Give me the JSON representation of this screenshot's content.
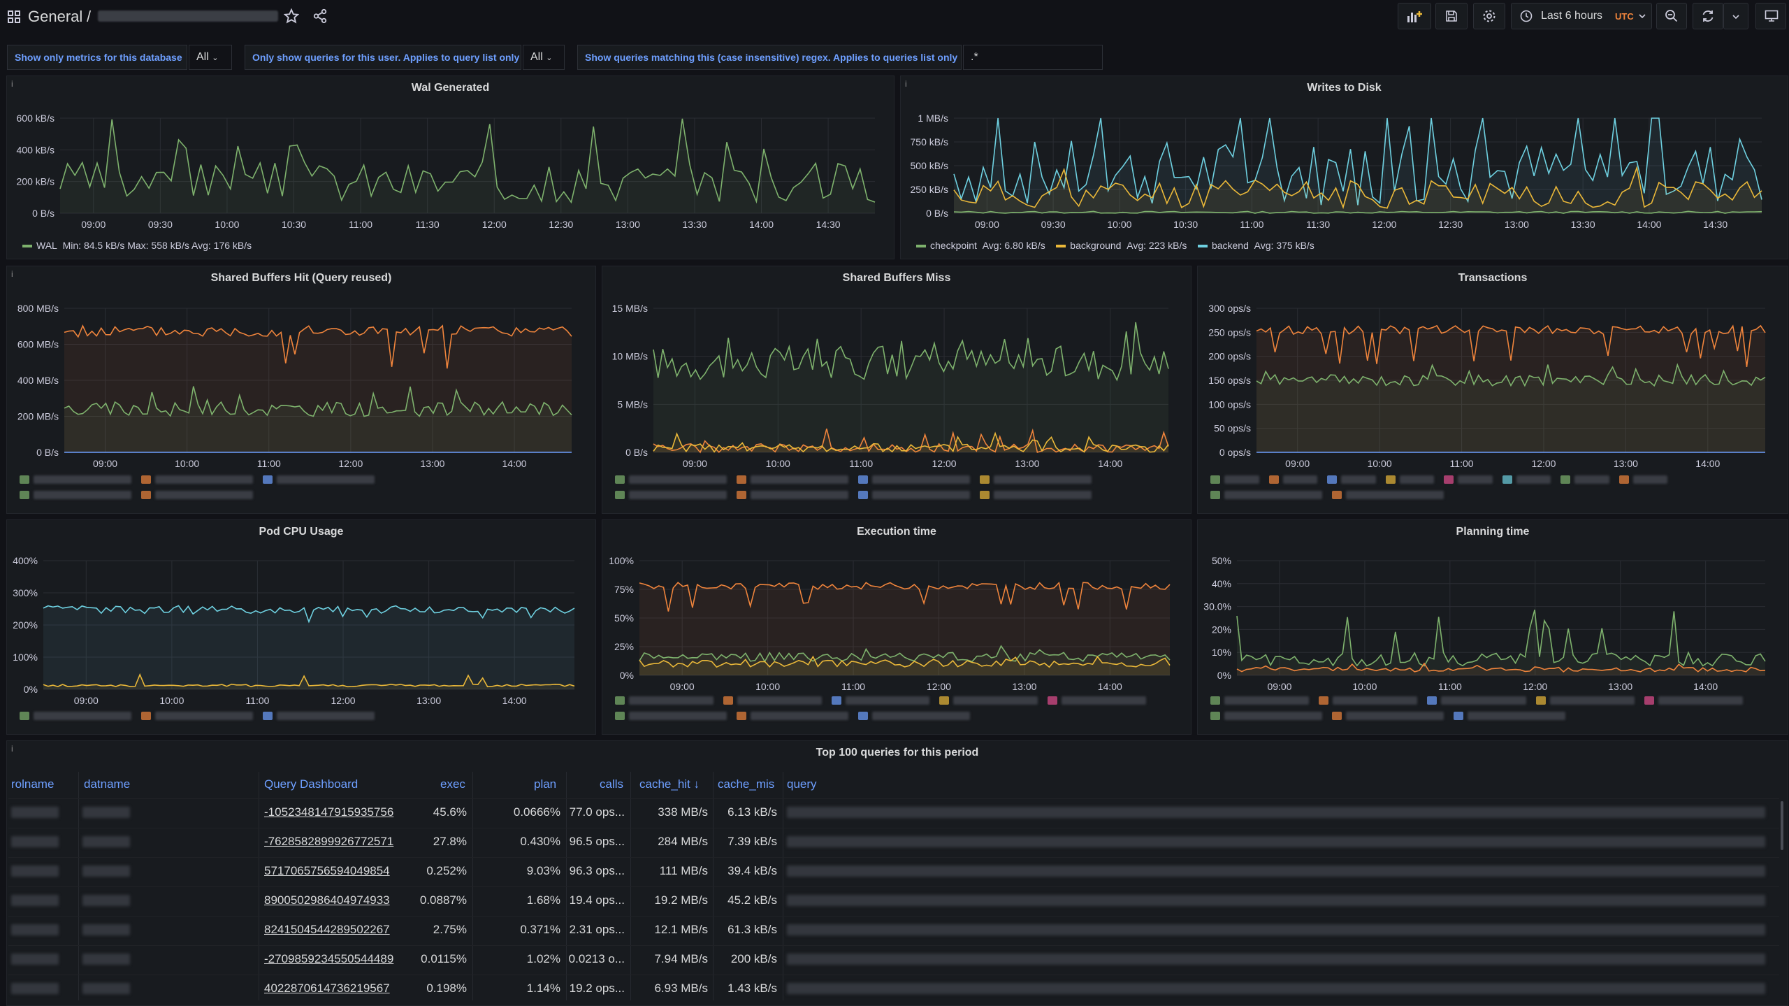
{
  "header": {
    "folder": "General",
    "separator": "/",
    "time_range": "Last 6 hours",
    "timezone": "UTC",
    "icons": [
      "apps-icon",
      "star-icon",
      "share-icon",
      "add-panel-icon",
      "save-icon",
      "settings-icon",
      "clock-icon",
      "zoom-out-icon",
      "refresh-icon",
      "chevron-down-icon",
      "tv-icon"
    ]
  },
  "variables": {
    "db_label": "Show only metrics for this database",
    "db_value": "All",
    "user_label": "Only show queries for this user. Applies to query list only",
    "user_value": "All",
    "regex_label": "Show queries matching this (case insensitive) regex. Applies to queries list only",
    "regex_value": ".*"
  },
  "panels": {
    "wal": {
      "title": "Wal Generated",
      "info": "i",
      "yticks": [
        "600 kB/s",
        "400 kB/s",
        "200 kB/s",
        "0 B/s"
      ],
      "xticks": [
        "09:00",
        "09:30",
        "10:00",
        "10:30",
        "11:00",
        "11:30",
        "12:00",
        "12:30",
        "13:00",
        "13:30",
        "14:00",
        "14:30"
      ],
      "legend": [
        {
          "name": "WAL",
          "stats": "Min: 84.5 kB/s  Max: 558 kB/s  Avg: 176 kB/s",
          "color": "#7eb26d"
        }
      ]
    },
    "writes": {
      "title": "Writes to Disk",
      "info": "i",
      "yticks": [
        "1 MB/s",
        "750 kB/s",
        "500 kB/s",
        "250 kB/s",
        "0 B/s"
      ],
      "xticks": [
        "09:00",
        "09:30",
        "10:00",
        "10:30",
        "11:00",
        "11:30",
        "12:00",
        "12:30",
        "13:00",
        "13:30",
        "14:00",
        "14:30"
      ],
      "legend": [
        {
          "name": "checkpoint",
          "stats": "Avg: 6.80 kB/s",
          "color": "#7eb26d"
        },
        {
          "name": "background",
          "stats": "Avg: 223 kB/s",
          "color": "#eab839"
        },
        {
          "name": "backend",
          "stats": "Avg: 375 kB/s",
          "color": "#6ed0e0"
        }
      ]
    },
    "sbhit": {
      "title": "Shared Buffers Hit (Query reused)",
      "info": "i",
      "yticks": [
        "800 MB/s",
        "600 MB/s",
        "400 MB/s",
        "200 MB/s",
        "0 B/s"
      ],
      "xticks": [
        "09:00",
        "10:00",
        "11:00",
        "12:00",
        "13:00",
        "14:00"
      ]
    },
    "sbmiss": {
      "title": "Shared Buffers Miss",
      "yticks": [
        "15 MB/s",
        "10 MB/s",
        "5 MB/s",
        "0 B/s"
      ],
      "xticks": [
        "09:00",
        "10:00",
        "11:00",
        "12:00",
        "13:00",
        "14:00"
      ]
    },
    "tx": {
      "title": "Transactions",
      "yticks": [
        "300 ops/s",
        "250 ops/s",
        "200 ops/s",
        "150 ops/s",
        "100 ops/s",
        "50 ops/s",
        "0 ops/s"
      ],
      "xticks": [
        "09:00",
        "10:00",
        "11:00",
        "12:00",
        "13:00",
        "14:00"
      ]
    },
    "cpu": {
      "title": "Pod CPU Usage",
      "yticks": [
        "400%",
        "300%",
        "200%",
        "100%",
        "0%"
      ],
      "xticks": [
        "09:00",
        "10:00",
        "11:00",
        "12:00",
        "13:00",
        "14:00"
      ]
    },
    "exec": {
      "title": "Execution time",
      "yticks": [
        "100%",
        "75%",
        "50%",
        "25%",
        "0%"
      ],
      "xticks": [
        "09:00",
        "10:00",
        "11:00",
        "12:00",
        "13:00",
        "14:00"
      ]
    },
    "plan": {
      "title": "Planning time",
      "yticks": [
        "50%",
        "40%",
        "30.0%",
        "20%",
        "10%",
        "0%"
      ],
      "xticks": [
        "09:00",
        "10:00",
        "11:00",
        "12:00",
        "13:00",
        "14:00"
      ]
    }
  },
  "table": {
    "title": "Top 100 queries for this period",
    "info": "i",
    "columns": [
      "rolname",
      "datname",
      "Query Dashboard",
      "exec",
      "plan",
      "calls",
      "cache_hit ↓",
      "cache_mis",
      "query"
    ],
    "rows": [
      {
        "dash": "-1052348147915935756",
        "exec": "45.6%",
        "plan": "0.0666%",
        "calls": "77.0 ops...",
        "hit": "338 MB/s",
        "miss": "6.13 kB/s"
      },
      {
        "dash": "-7628582899926772571",
        "exec": "27.8%",
        "plan": "0.430%",
        "calls": "96.5 ops...",
        "hit": "284 MB/s",
        "miss": "7.39 kB/s"
      },
      {
        "dash": "5717065756594049854",
        "exec": "0.252%",
        "plan": "9.03%",
        "calls": "96.3 ops...",
        "hit": "111 MB/s",
        "miss": "39.4 kB/s"
      },
      {
        "dash": "8900502986404974933",
        "exec": "0.0887%",
        "plan": "1.68%",
        "calls": "19.4 ops...",
        "hit": "19.2 MB/s",
        "miss": "45.2 kB/s"
      },
      {
        "dash": "8241504544289502267",
        "exec": "2.75%",
        "plan": "0.371%",
        "calls": "2.31 ops...",
        "hit": "12.1 MB/s",
        "miss": "61.3 kB/s"
      },
      {
        "dash": "-2709859234550544489",
        "exec": "0.0115%",
        "plan": "1.02%",
        "calls": "0.0213 o...",
        "hit": "7.94 MB/s",
        "miss": "200 kB/s"
      },
      {
        "dash": "4022870614736219567",
        "exec": "0.198%",
        "plan": "1.14%",
        "calls": "19.2 ops...",
        "hit": "6.93 MB/s",
        "miss": "1.43 kB/s"
      }
    ]
  },
  "colors": {
    "green": "#7eb26d",
    "orange": "#ef843c",
    "yellow": "#eab839",
    "cyan": "#6ed0e0",
    "blue": "#6e9fff",
    "pink": "#e24d8e"
  }
}
